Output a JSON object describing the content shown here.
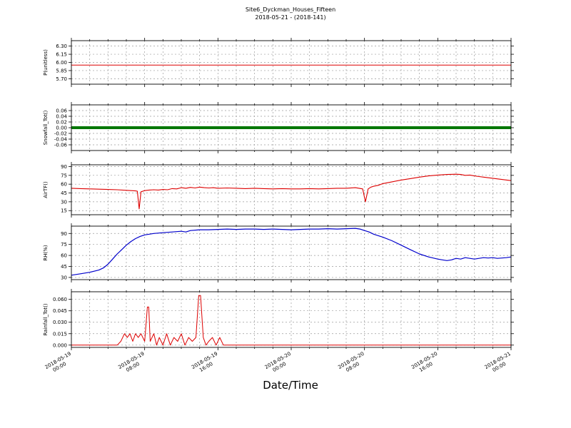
{
  "figure": {
    "title": "Site6_Dyckman_Houses_Fifteen",
    "subtitle": "2018-05-21 - (2018-141)",
    "xlabel": "Date/Time"
  },
  "x_axis": {
    "range_hours": [
      0,
      48
    ],
    "major_tick_hours": [
      0,
      8,
      16,
      24,
      32,
      40,
      48
    ],
    "minor_tick_step_hours": 2,
    "tick_labels": [
      {
        "date": "2018-05-19",
        "time": "00:00"
      },
      {
        "date": "2018-05-19",
        "time": "08:00"
      },
      {
        "date": "2018-05-19",
        "time": "16:00"
      },
      {
        "date": "2018-05-20",
        "time": "00:00"
      },
      {
        "date": "2018-05-20",
        "time": "08:00"
      },
      {
        "date": "2018-05-20",
        "time": "16:00"
      },
      {
        "date": "2018-05-21",
        "time": "00:00"
      }
    ]
  },
  "chart_data": [
    {
      "id": "p",
      "type": "line",
      "ylabel": "P(unitless)",
      "color": "#dd0000",
      "line_width": 1,
      "ylim": [
        5.6,
        6.4
      ],
      "yticks": [
        "5.70",
        "5.85",
        "6.00",
        "6.15",
        "6.30"
      ],
      "x": [
        0,
        48
      ],
      "y": [
        5.95,
        5.95
      ]
    },
    {
      "id": "snowfall",
      "type": "line",
      "ylabel": "Snowfall_Tot()",
      "color": "#007700",
      "line_width": 4,
      "ylim": [
        -0.08,
        0.08
      ],
      "yticks": [
        "-0.06",
        "-0.04",
        "-0.02",
        "0.00",
        "0.02",
        "0.04",
        "0.06"
      ],
      "x": [
        0,
        48
      ],
      "y": [
        0,
        0
      ]
    },
    {
      "id": "airtf",
      "type": "line",
      "ylabel": "AirTF()",
      "color": "#dd0000",
      "line_width": 1.1,
      "ylim": [
        8,
        93
      ],
      "yticks": [
        "15",
        "30",
        "45",
        "60",
        "75",
        "90"
      ],
      "x": [
        0,
        1,
        2,
        3,
        4,
        5,
        6,
        6.5,
        7,
        7.2,
        7.4,
        7.6,
        8,
        8.5,
        9,
        9.5,
        10,
        10.5,
        11,
        11.5,
        12,
        12.5,
        13,
        13.5,
        14,
        14.5,
        15,
        15.5,
        16,
        17,
        18,
        19,
        20,
        21,
        22,
        23,
        24,
        25,
        26,
        27,
        28,
        29,
        30,
        31,
        31.8,
        32.1,
        32.4,
        32.7,
        33,
        33.5,
        34,
        35,
        36,
        37,
        38,
        39,
        40,
        41,
        42,
        42.5,
        43,
        43.5,
        44,
        44.5,
        45,
        46,
        47,
        48
      ],
      "y": [
        53,
        52.5,
        52,
        51.5,
        51,
        50.5,
        49.5,
        49,
        48.5,
        48,
        18,
        47,
        49,
        50,
        50.5,
        50,
        51,
        50.5,
        52.5,
        52,
        54,
        53,
        54.5,
        53.5,
        55,
        54,
        53.5,
        54,
        53,
        53.5,
        53,
        52.5,
        53,
        52.5,
        52,
        52.5,
        52,
        52,
        52.5,
        52,
        52.5,
        53,
        53,
        54,
        52,
        30,
        52,
        55,
        56.5,
        58,
        61,
        64,
        67,
        69.5,
        72,
        74,
        75.5,
        76.5,
        77,
        76.5,
        75,
        75.5,
        74,
        73,
        72,
        70,
        68,
        66
      ]
    },
    {
      "id": "rh",
      "type": "line",
      "ylabel": "RH(%)",
      "color": "#0000cc",
      "line_width": 1.2,
      "ylim": [
        27,
        100
      ],
      "yticks": [
        "30",
        "45",
        "60",
        "75",
        "90"
      ],
      "x": [
        0,
        1,
        2,
        3,
        3.5,
        4,
        4.5,
        5,
        5.5,
        6,
        6.5,
        7,
        7.5,
        8,
        8.5,
        9,
        10,
        11,
        12,
        12.5,
        13,
        14,
        15,
        16,
        17,
        18,
        19,
        20,
        21,
        22,
        23,
        24,
        25,
        26,
        27,
        28,
        29,
        30,
        31,
        31.5,
        32,
        32.5,
        33,
        34,
        35,
        36,
        37,
        38,
        39,
        40,
        40.5,
        41,
        41.5,
        42,
        42.5,
        43,
        43.5,
        44,
        44.5,
        45,
        45.5,
        46,
        46.5,
        47,
        47.5,
        48
      ],
      "y": [
        33,
        35,
        37,
        40,
        43,
        48,
        55,
        62,
        68,
        74,
        79,
        83,
        86,
        88,
        89,
        90,
        91,
        92,
        93,
        92,
        94,
        95,
        95,
        95.5,
        96,
        95.5,
        96,
        96,
        95.5,
        96,
        95.5,
        95,
        95.5,
        96,
        96,
        96.5,
        96,
        96.5,
        97,
        96,
        94,
        92,
        89,
        85,
        80,
        74,
        68,
        62,
        58,
        55,
        54,
        53,
        54,
        56,
        55,
        57,
        56,
        55,
        56,
        57,
        56.5,
        57,
        56,
        56.5,
        57,
        58
      ]
    },
    {
      "id": "rainfall",
      "type": "line",
      "ylabel": "Rainfall_Tot()",
      "color": "#dd0000",
      "line_width": 1,
      "ylim": [
        -0.003,
        0.07
      ],
      "yticks": [
        "0.000",
        "0.015",
        "0.030",
        "0.045",
        "0.060"
      ],
      "x": [
        0,
        5,
        5.4,
        5.8,
        6.1,
        6.4,
        6.7,
        7,
        7.3,
        7.6,
        8,
        8.3,
        8.45,
        8.6,
        9,
        9.3,
        9.6,
        10,
        10.4,
        10.8,
        11.2,
        11.6,
        12,
        12.4,
        12.8,
        13.2,
        13.6,
        13.9,
        14.1,
        14.4,
        14.7,
        15,
        15.4,
        15.8,
        16.2,
        16.6,
        17,
        48
      ],
      "y": [
        0,
        0,
        0.005,
        0.015,
        0.01,
        0.015,
        0.005,
        0.015,
        0.01,
        0.015,
        0.005,
        0.05,
        0.05,
        0.005,
        0.015,
        0,
        0.01,
        0,
        0.015,
        0,
        0.01,
        0.005,
        0.015,
        0,
        0.01,
        0.005,
        0.01,
        0.065,
        0.065,
        0.01,
        0,
        0.005,
        0.01,
        0,
        0.01,
        0,
        0,
        0
      ]
    }
  ]
}
